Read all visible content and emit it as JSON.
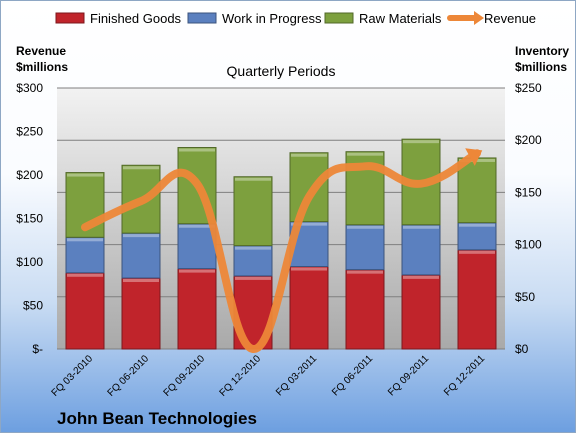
{
  "chart_data": {
    "type": "bar",
    "stacked": true,
    "subtitle": "Quarterly Periods",
    "company": "John Bean Technologies",
    "y_left_label_line1": "Revenue",
    "y_left_label_line2": "$millions",
    "y_right_label_line1": "Inventory",
    "y_right_label_line2": "$millions",
    "categories": [
      "FQ 03-2010",
      "FQ 06-2010",
      "FQ 09-2010",
      "FQ 12-2010",
      "FQ 03-2011",
      "FQ 06-2011",
      "FQ 09-2011",
      "FQ 12-2011"
    ],
    "series": [
      {
        "name": "Finished Goods",
        "axis": "right",
        "color": "#c0242b",
        "values": [
          73,
          68,
          77,
          70,
          79,
          76,
          71,
          95
        ]
      },
      {
        "name": "Work in Progress",
        "axis": "right",
        "color": "#5b80bf",
        "values": [
          34,
          43,
          43,
          29,
          43,
          43,
          48,
          26
        ]
      },
      {
        "name": "Raw Materials",
        "axis": "right",
        "color": "#7da03e",
        "values": [
          62,
          65,
          73,
          66,
          66,
          70,
          82,
          62
        ]
      },
      {
        "name": "Revenue",
        "axis": "left",
        "type": "line",
        "color": "#ed8738",
        "values": [
          140,
          170,
          190,
          0,
          175,
          210,
          190,
          225
        ]
      }
    ],
    "y_left": {
      "min": 0,
      "max": 300,
      "ticks": [
        "$-",
        "$50",
        "$100",
        "$150",
        "$200",
        "$250",
        "$300"
      ]
    },
    "y_right": {
      "min": 0,
      "max": 250,
      "ticks": [
        "$0",
        "$50",
        "$100",
        "$150",
        "$200",
        "$250"
      ]
    },
    "legend_position": "top",
    "grid": true
  }
}
